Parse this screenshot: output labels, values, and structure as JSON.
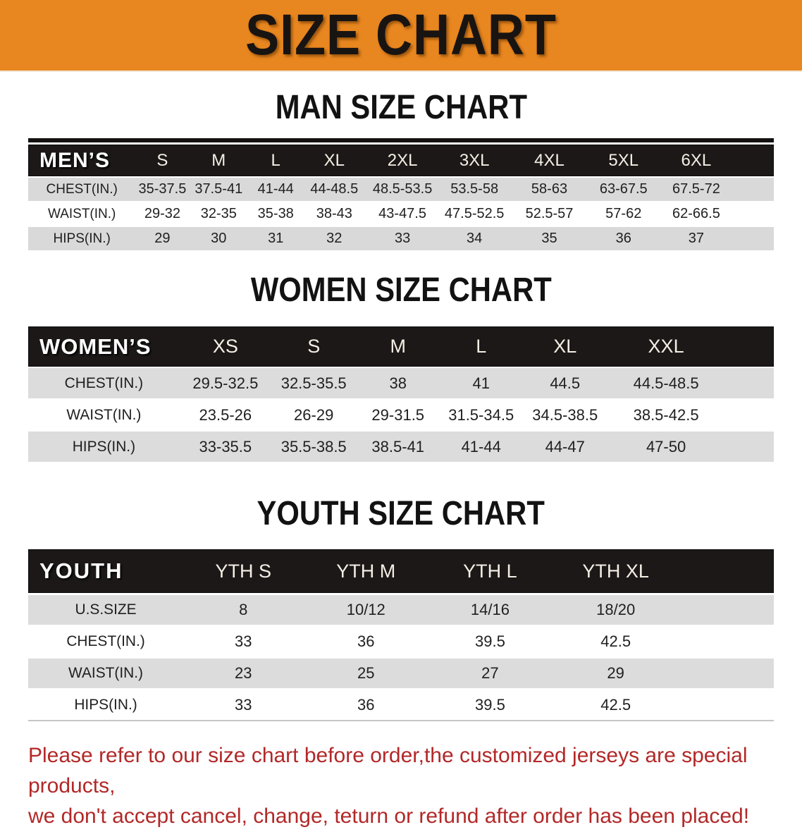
{
  "banner": {
    "title": "SIZE CHART",
    "bg_color": "#E8861F",
    "text_color": "#181412"
  },
  "sections": {
    "men_heading": "MAN SIZE CHART",
    "women_heading": "WOMEN SIZE CHART",
    "youth_heading": "YOUTH SIZE CHART"
  },
  "tables": {
    "men": {
      "header_label": "MEN’S",
      "columns": [
        "S",
        "M",
        "L",
        "XL",
        "2XL",
        "3XL",
        "4XL",
        "5XL",
        "6XL"
      ],
      "rows": [
        {
          "label": "CHEST(IN.)",
          "values": [
            "35-37.5",
            "37.5-41",
            "41-44",
            "44-48.5",
            "48.5-53.5",
            "53.5-58",
            "58-63",
            "63-67.5",
            "67.5-72"
          ]
        },
        {
          "label": "WAIST(IN.)",
          "values": [
            "29-32",
            "32-35",
            "35-38",
            "38-43",
            "43-47.5",
            "47.5-52.5",
            "52.5-57",
            "57-62",
            "62-66.5"
          ]
        },
        {
          "label": "HIPS(IN.)",
          "values": [
            "29",
            "30",
            "31",
            "32",
            "33",
            "34",
            "35",
            "36",
            "37"
          ]
        }
      ]
    },
    "women": {
      "header_label": "WOMEN’S",
      "columns": [
        "XS",
        "S",
        "M",
        "L",
        "XL",
        "XXL"
      ],
      "rows": [
        {
          "label": "CHEST(IN.)",
          "values": [
            "29.5-32.5",
            "32.5-35.5",
            "38",
            "41",
            "44.5",
            "44.5-48.5"
          ]
        },
        {
          "label": "WAIST(IN.)",
          "values": [
            "23.5-26",
            "26-29",
            "29-31.5",
            "31.5-34.5",
            "34.5-38.5",
            "38.5-42.5"
          ]
        },
        {
          "label": "HIPS(IN.)",
          "values": [
            "33-35.5",
            "35.5-38.5",
            "38.5-41",
            "41-44",
            "44-47",
            "47-50"
          ]
        }
      ]
    },
    "youth": {
      "header_label": "YOUTH",
      "columns": [
        "YTH S",
        "YTH M",
        "YTH L",
        "YTH XL"
      ],
      "rows": [
        {
          "label": "U.S.SIZE",
          "values": [
            "8",
            "10/12",
            "14/16",
            "18/20"
          ]
        },
        {
          "label": "CHEST(IN.)",
          "values": [
            "33",
            "36",
            "39.5",
            "42.5"
          ]
        },
        {
          "label": "WAIST(IN.)",
          "values": [
            "23",
            "25",
            "27",
            "29"
          ]
        },
        {
          "label": "HIPS(IN.)",
          "values": [
            "33",
            "36",
            "39.5",
            "42.5"
          ]
        }
      ]
    }
  },
  "footer": {
    "line1": "Please refer to our size chart before order,the customized jerseys are special products,",
    "line2": "we don't accept cancel, change, teturn or refund after order has been placed!",
    "color": "#B22828"
  }
}
